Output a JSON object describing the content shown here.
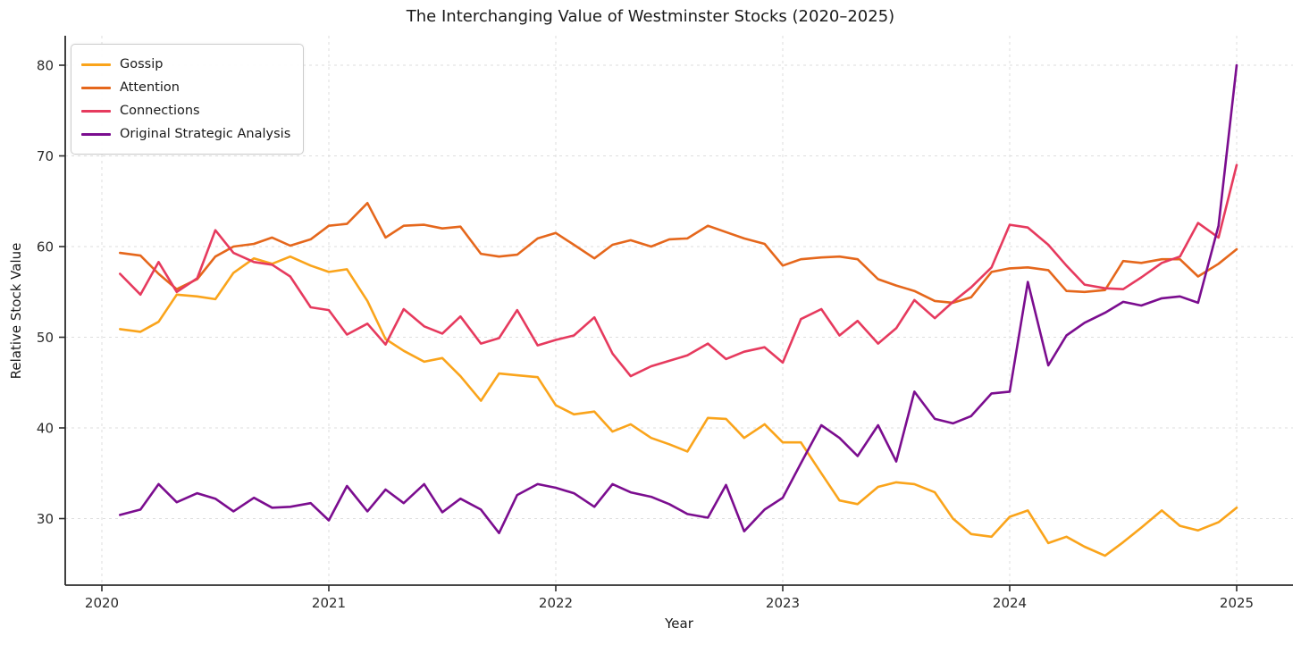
{
  "chart_data": {
    "type": "line",
    "title": "The Interchanging Value of Westminster Stocks (2020–2025)",
    "xlabel": "Year",
    "ylabel": "Relative Stock Value",
    "xticks": [
      2020,
      2021,
      2022,
      2023,
      2024,
      2025
    ],
    "yticks": [
      30,
      40,
      50,
      60,
      70,
      80
    ],
    "xlim": [
      2019.84,
      2025.25
    ],
    "ylim": [
      22.7,
      83.3
    ],
    "grid": "dashed-lightgray",
    "legend_position": "upper-left",
    "x": [
      2020.08,
      2020.17,
      2020.25,
      2020.33,
      2020.42,
      2020.5,
      2020.58,
      2020.67,
      2020.75,
      2020.83,
      2020.92,
      2021.0,
      2021.08,
      2021.17,
      2021.25,
      2021.33,
      2021.42,
      2021.5,
      2021.58,
      2021.67,
      2021.75,
      2021.83,
      2021.92,
      2022.0,
      2022.08,
      2022.17,
      2022.25,
      2022.33,
      2022.42,
      2022.5,
      2022.58,
      2022.67,
      2022.75,
      2022.83,
      2022.92,
      2023.0,
      2023.08,
      2023.17,
      2023.25,
      2023.33,
      2023.42,
      2023.5,
      2023.58,
      2023.67,
      2023.75,
      2023.83,
      2023.92,
      2024.0,
      2024.08,
      2024.17,
      2024.25,
      2024.33,
      2024.42,
      2024.5,
      2024.58,
      2024.67,
      2024.75,
      2024.83,
      2024.92,
      2025.0
    ],
    "series": [
      {
        "name": "Gossip",
        "color": "#FAA41B",
        "values": [
          50.9,
          50.6,
          51.7,
          54.7,
          54.5,
          54.2,
          57.1,
          58.7,
          58.1,
          58.9,
          57.9,
          57.2,
          57.5,
          54.0,
          49.8,
          48.5,
          47.3,
          47.7,
          45.7,
          43.0,
          46.0,
          45.8,
          45.6,
          42.5,
          41.5,
          41.8,
          39.6,
          40.4,
          38.9,
          38.2,
          37.4,
          41.1,
          41.0,
          38.9,
          40.4,
          38.4,
          38.4,
          35.0,
          32.0,
          31.6,
          33.5,
          34.0,
          33.8,
          32.9,
          30.0,
          28.3,
          28.0,
          30.2,
          30.9,
          27.3,
          28.0,
          26.9,
          25.9,
          27.4,
          29.0,
          30.9,
          29.2,
          28.7,
          29.6,
          31.2
        ]
      },
      {
        "name": "Attention",
        "color": "#E5671C",
        "values": [
          59.3,
          59.0,
          57.0,
          55.3,
          56.4,
          58.9,
          60.0,
          60.3,
          61.0,
          60.1,
          60.8,
          62.3,
          62.5,
          64.8,
          61.0,
          62.3,
          62.4,
          62.0,
          62.2,
          59.2,
          58.9,
          59.1,
          60.9,
          61.5,
          60.2,
          58.7,
          60.2,
          60.7,
          60.0,
          60.8,
          60.9,
          62.3,
          61.6,
          60.9,
          60.3,
          57.9,
          58.6,
          58.8,
          58.9,
          58.6,
          56.4,
          55.7,
          55.1,
          54.0,
          53.8,
          54.4,
          57.2,
          57.6,
          57.7,
          57.4,
          55.1,
          55.0,
          55.2,
          58.4,
          58.2,
          58.6,
          58.6,
          56.7,
          58.1,
          59.7
        ]
      },
      {
        "name": "Connections",
        "color": "#E63A5E",
        "values": [
          57.0,
          54.7,
          58.3,
          55.0,
          56.5,
          61.8,
          59.3,
          58.3,
          58.0,
          56.7,
          53.3,
          53.0,
          50.3,
          51.5,
          49.2,
          53.1,
          51.2,
          50.4,
          52.3,
          49.3,
          49.9,
          53.0,
          49.1,
          49.7,
          50.2,
          52.2,
          48.2,
          45.7,
          46.8,
          47.4,
          48.0,
          49.3,
          47.6,
          48.4,
          48.9,
          47.2,
          52.0,
          53.1,
          50.2,
          51.8,
          49.3,
          51.0,
          54.1,
          52.1,
          53.9,
          55.5,
          57.7,
          62.4,
          62.1,
          60.2,
          57.9,
          55.8,
          55.4,
          55.3,
          56.6,
          58.2,
          58.9,
          62.6,
          61.0,
          69.0
        ]
      },
      {
        "name": "Original Strategic Analysis",
        "color": "#7B0D8F",
        "values": [
          30.4,
          31.0,
          33.8,
          31.8,
          32.8,
          32.2,
          30.8,
          32.3,
          31.2,
          31.3,
          31.7,
          29.8,
          33.6,
          30.8,
          33.2,
          31.7,
          33.8,
          30.7,
          32.2,
          31.0,
          28.4,
          32.6,
          33.8,
          33.4,
          32.8,
          31.3,
          33.8,
          32.9,
          32.4,
          31.6,
          30.5,
          30.1,
          33.7,
          28.6,
          31.0,
          32.3,
          36.1,
          40.3,
          38.9,
          36.9,
          40.3,
          36.3,
          44.0,
          41.0,
          40.5,
          41.3,
          43.8,
          44.0,
          56.1,
          46.9,
          50.2,
          51.6,
          52.7,
          53.9,
          53.5,
          54.3,
          54.5,
          53.8,
          62.3,
          80.0
        ]
      }
    ]
  },
  "style": {
    "grid_color": "#dedede",
    "spine_color": "#2b2b2b",
    "tick_label_color": "#2b2b2b",
    "background": "#ffffff"
  }
}
